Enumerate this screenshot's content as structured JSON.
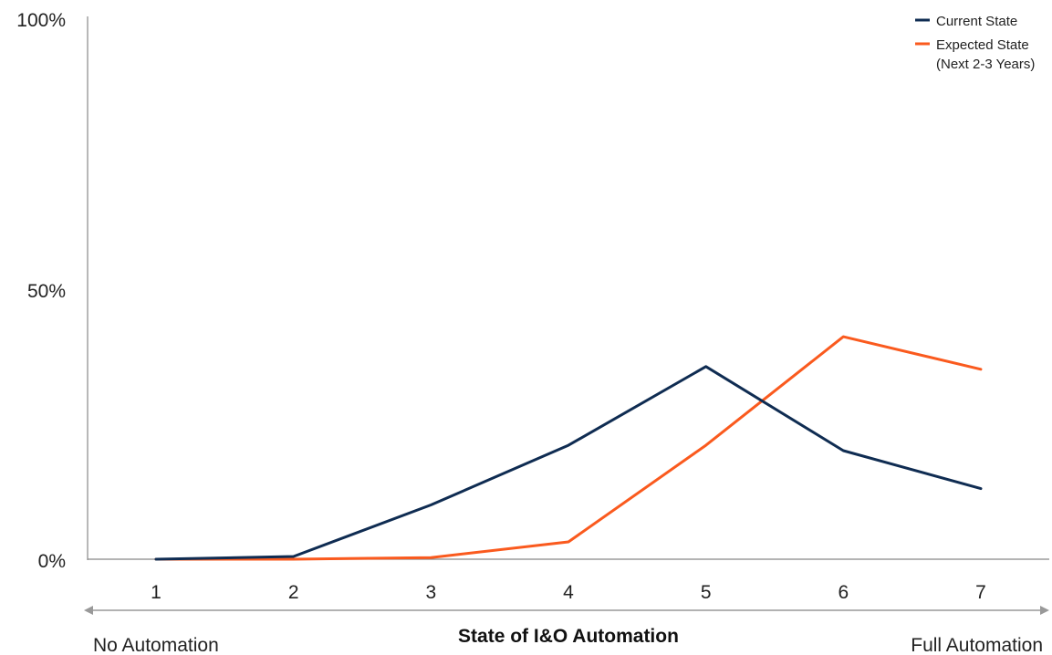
{
  "chart_data": {
    "type": "line",
    "x": [
      1,
      2,
      3,
      4,
      5,
      6,
      7
    ],
    "categories": [
      "1",
      "2",
      "3",
      "4",
      "5",
      "6",
      "7"
    ],
    "xlabel": "State of I&O Automation",
    "xlabel_left": "No Automation",
    "xlabel_right": "Full Automation",
    "ylabel": "",
    "ylim": [
      0,
      100
    ],
    "yticks": [
      "0%",
      "50%",
      "100%"
    ],
    "grid": false,
    "legend_position": "top-right",
    "series": [
      {
        "name": "Current State",
        "color": "#0f2c52",
        "values": [
          0,
          0.5,
          10,
          21,
          35.5,
          20,
          13
        ]
      },
      {
        "name": "Expected State",
        "name_line2": "(Next 2-3 Years)",
        "color": "#fa5a1e",
        "values": [
          0,
          0,
          0.3,
          3.2,
          21,
          41,
          35
        ]
      }
    ]
  }
}
